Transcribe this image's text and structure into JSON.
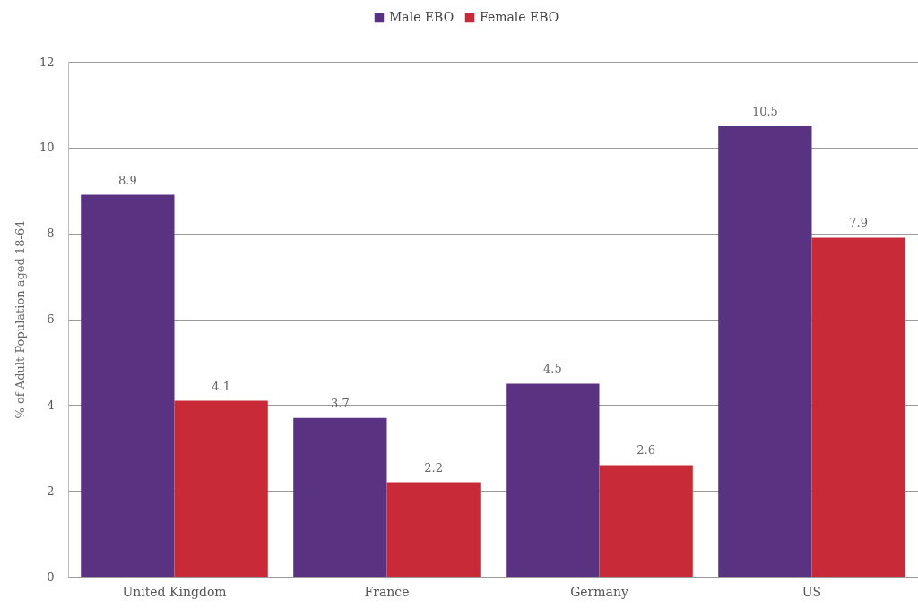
{
  "chart_data": {
    "type": "bar",
    "categories": [
      "United Kingdom",
      "France",
      "Germany",
      "US"
    ],
    "series": [
      {
        "name": "Male EBO",
        "color": "#5a3282",
        "values": [
          8.9,
          3.7,
          4.5,
          10.5
        ]
      },
      {
        "name": "Female EBO",
        "color": "#c82a37",
        "values": [
          4.1,
          2.2,
          2.6,
          7.9
        ]
      }
    ],
    "ylabel": "% of Adult Population aged 18-64",
    "ylim": [
      0,
      12
    ],
    "yticks": [
      0,
      2,
      4,
      6,
      8,
      10,
      12
    ],
    "grid": "y",
    "legend": "top",
    "data_labels": true
  }
}
